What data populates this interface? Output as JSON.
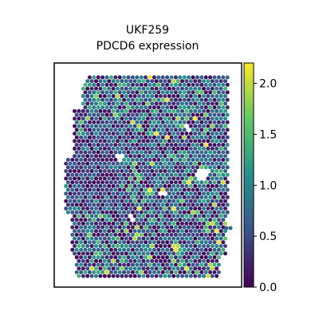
{
  "chart_data": {
    "type": "heatmap",
    "title_lines": [
      "UKF259",
      "PDCD6 expression"
    ],
    "xlabel": "",
    "ylabel": "",
    "colormap": [
      "#440154",
      "#3b528b",
      "#21918c",
      "#5ec962",
      "#fde725"
    ],
    "colorbar": {
      "range": [
        0.0,
        2.2
      ],
      "ticks": [
        0.0,
        0.5,
        1.0,
        1.5,
        2.0
      ],
      "tick_labels": [
        "0.0",
        "0.5",
        "1.0",
        "1.5",
        "2.0"
      ]
    },
    "value_summary": {
      "min": 0.0,
      "max": 2.2,
      "typical": 0.8
    },
    "grid": false,
    "frame": true
  }
}
